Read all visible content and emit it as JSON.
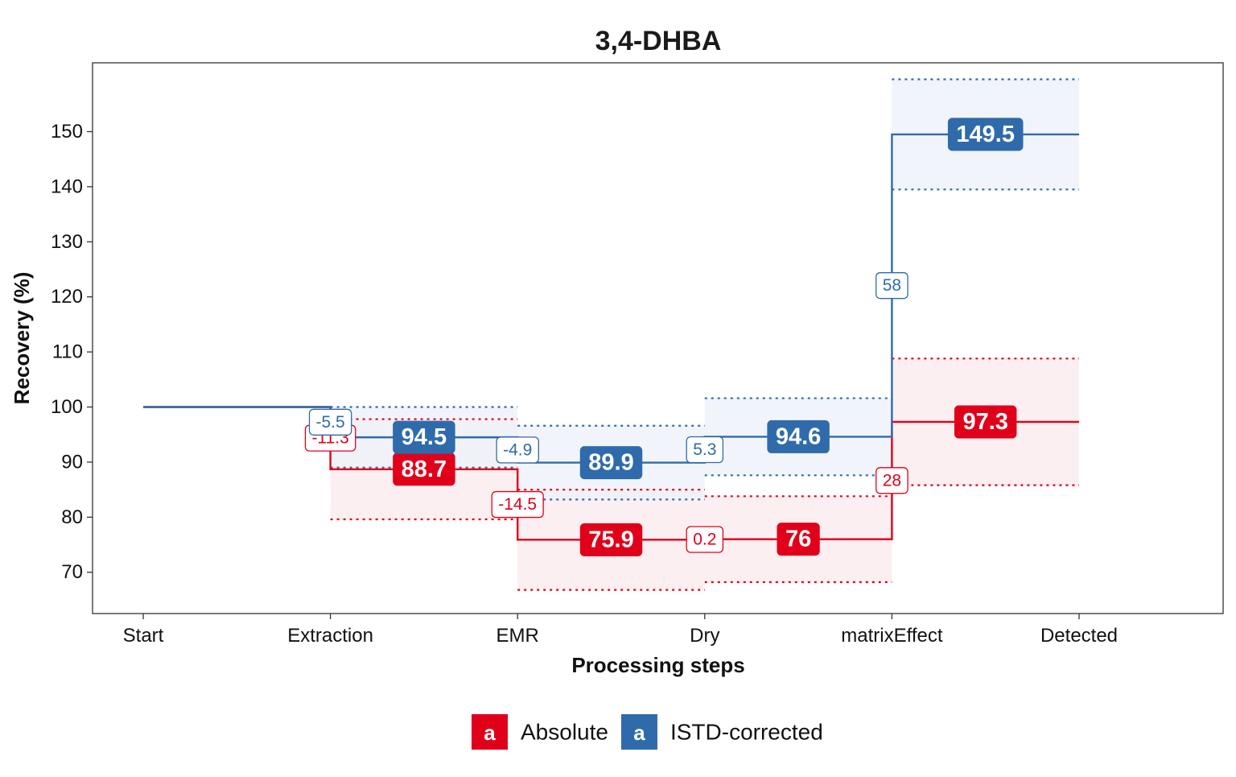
{
  "chart_data": {
    "type": "line",
    "subtype": "step (waterfall) with uncertainty bands",
    "title": "3,4-DHBA",
    "xlabel": "Processing steps",
    "ylabel": "Recovery (%)",
    "categories": [
      "Start",
      "Extraction",
      "EMR",
      "Dry",
      "matrixEffect",
      "Detected"
    ],
    "ylim": [
      62.5,
      162.5
    ],
    "yticks": [
      70,
      80,
      90,
      100,
      110,
      120,
      130,
      140,
      150
    ],
    "grid": false,
    "legend_position": "bottom",
    "legend_key_glyph": "a",
    "series": [
      {
        "name": "Absolute",
        "color": "#E1001A",
        "band_fill": "#FBECEE",
        "start_value": 100,
        "steps": [
          {
            "label": "Extraction",
            "value": 88.7,
            "lower": 79.6,
            "upper": 97.8
          },
          {
            "label": "EMR",
            "value": 75.9,
            "lower": 66.8,
            "upper": 85.0
          },
          {
            "label": "Dry",
            "value": 76,
            "lower": 68.2,
            "upper": 83.8
          },
          {
            "label": "matrixEffect",
            "value": 97.3,
            "lower": 85.8,
            "upper": 108.8
          }
        ],
        "changes": [
          {
            "at": "Extraction",
            "text": "-11.3"
          },
          {
            "at": "EMR",
            "text": "-14.5"
          },
          {
            "at": "Dry",
            "text": "0.2"
          },
          {
            "at": "matrixEffect",
            "text": "28"
          }
        ]
      },
      {
        "name": "ISTD-corrected",
        "color": "#2F6BAA",
        "band_fill": "#EEF2F9",
        "start_value": 100,
        "steps": [
          {
            "label": "Extraction",
            "value": 94.5,
            "lower": 89.0,
            "upper": 100.0
          },
          {
            "label": "EMR",
            "value": 89.9,
            "lower": 83.2,
            "upper": 96.6
          },
          {
            "label": "Dry",
            "value": 94.6,
            "lower": 87.6,
            "upper": 101.6
          },
          {
            "label": "matrixEffect",
            "value": 149.5,
            "lower": 139.5,
            "upper": 159.5
          }
        ],
        "changes": [
          {
            "at": "Extraction",
            "text": "-5.5"
          },
          {
            "at": "EMR",
            "text": "-4.9"
          },
          {
            "at": "Dry",
            "text": "5.3"
          },
          {
            "at": "matrixEffect",
            "text": "58"
          }
        ]
      }
    ]
  }
}
